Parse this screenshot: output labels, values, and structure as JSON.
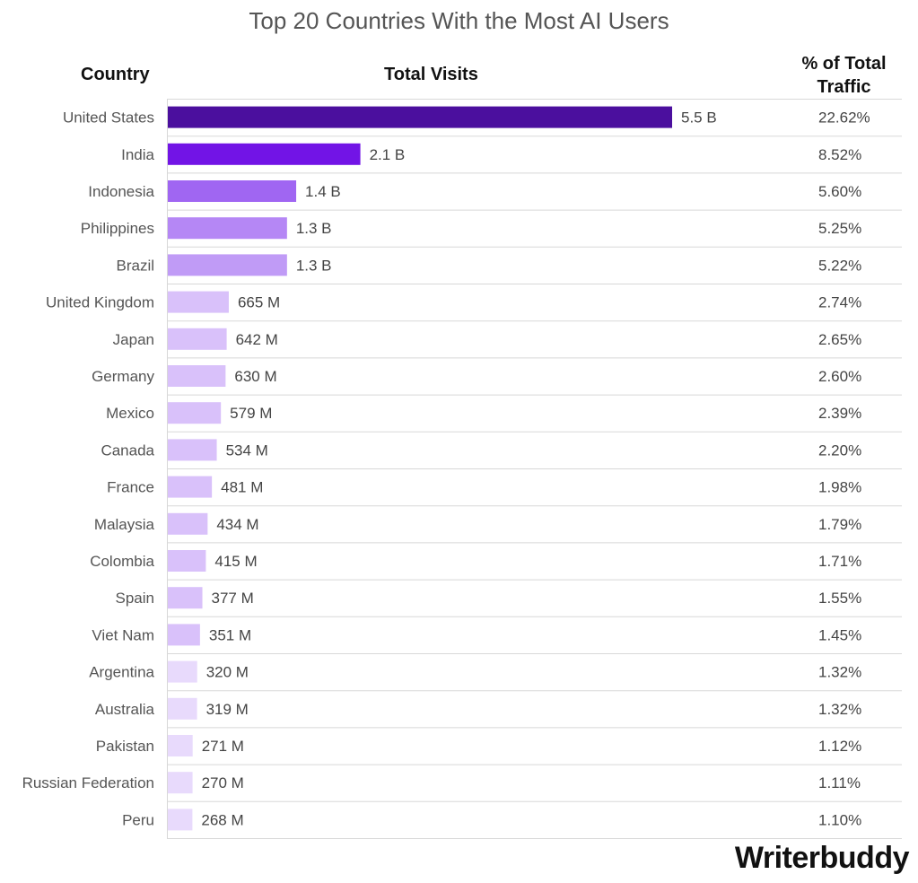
{
  "chart_data": {
    "type": "bar",
    "title": "Top 20 Countries With the Most AI Users",
    "column_headers": {
      "country": "Country",
      "visits": "Total Visits",
      "traffic": "% of Total Traffic"
    },
    "countries": [
      "United States",
      "India",
      "Indonesia",
      "Philippines",
      "Brazil",
      "United Kingdom",
      "Japan",
      "Germany",
      "Mexico",
      "Canada",
      "France",
      "Malaysia",
      "Colombia",
      "Spain",
      "Viet Nam",
      "Argentina",
      "Australia",
      "Pakistan",
      "Russian Federation",
      "Peru"
    ],
    "values_millions": [
      5500,
      2100,
      1400,
      1300,
      1300,
      665,
      642,
      630,
      579,
      534,
      481,
      434,
      415,
      377,
      351,
      320,
      319,
      271,
      270,
      268
    ],
    "value_labels": [
      "5.5 B",
      "2.1 B",
      "1.4 B",
      "1.3 B",
      "1.3 B",
      "665 M",
      "642 M",
      "630 M",
      "579 M",
      "534 M",
      "481 M",
      "434 M",
      "415 M",
      "377 M",
      "351 M",
      "320 M",
      "319 M",
      "271 M",
      "270 M",
      "268 M"
    ],
    "traffic_labels": [
      "22.62%",
      "8.52%",
      "5.60%",
      "5.25%",
      "5.22%",
      "2.74%",
      "2.65%",
      "2.60%",
      "2.39%",
      "2.20%",
      "1.98%",
      "1.79%",
      "1.71%",
      "1.55%",
      "1.45%",
      "1.32%",
      "1.32%",
      "1.12%",
      "1.11%",
      "1.10%"
    ],
    "colors": [
      "#4b0f9e",
      "#7214e6",
      "#a066f2",
      "#b587f5",
      "#c09bf6",
      "#d9c1fa",
      "#d9c1fa",
      "#d9c1fa",
      "#d9c1fa",
      "#d9c1fa",
      "#d9c1fa",
      "#d9c1fa",
      "#d9c1fa",
      "#d9c1fa",
      "#d9c1fa",
      "#e8dafc",
      "#e8dafc",
      "#e8dafc",
      "#e8dafc",
      "#e8dafc"
    ],
    "orientation": "horizontal",
    "xlim": [
      0,
      5500
    ]
  },
  "brand": {
    "logo_text": "Writerbuddy"
  }
}
